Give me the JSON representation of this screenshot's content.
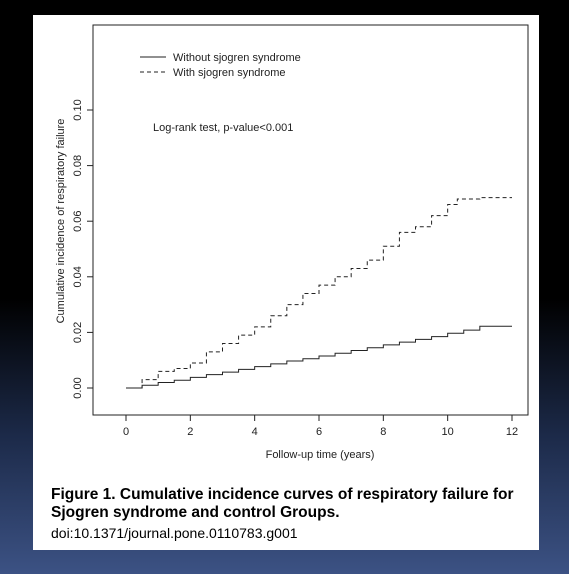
{
  "chart_data": {
    "type": "line",
    "xlabel": "Follow-up time (years)",
    "ylabel": "Cumulative incidence of respiratory failure",
    "xlim": [
      0,
      12
    ],
    "ylim": [
      0,
      0.1
    ],
    "xticks": [
      0,
      2,
      4,
      6,
      8,
      10,
      12
    ],
    "yticks": [
      0.0,
      0.02,
      0.04,
      0.06,
      0.08,
      0.1
    ],
    "ytick_labels": [
      "0.00",
      "0.02",
      "0.04",
      "0.06",
      "0.08",
      "0.10"
    ],
    "grid": false,
    "legend_position": "top-left",
    "annotation": "Log-rank test, p-value<0.001",
    "series": [
      {
        "name": "Without sjogren syndrome",
        "style": "solid",
        "x": [
          0,
          0.5,
          1,
          1.5,
          2,
          2.5,
          3,
          3.5,
          4,
          4.5,
          5,
          5.5,
          6,
          6.5,
          7,
          7.5,
          8,
          8.5,
          9,
          9.5,
          10,
          10.5,
          11,
          12
        ],
        "y": [
          0,
          0.001,
          0.002,
          0.0028,
          0.0038,
          0.0048,
          0.0057,
          0.0067,
          0.0077,
          0.0087,
          0.0097,
          0.0105,
          0.0115,
          0.0125,
          0.0135,
          0.0145,
          0.0155,
          0.0165,
          0.0175,
          0.0185,
          0.0197,
          0.0208,
          0.0222,
          0.0222
        ]
      },
      {
        "name": "With sjogren syndrome",
        "style": "dashed",
        "x": [
          0,
          0.5,
          1,
          1.5,
          2,
          2.5,
          3,
          3.5,
          4,
          4.5,
          5,
          5.5,
          6,
          6.5,
          7,
          7.5,
          8,
          8.5,
          9,
          9.5,
          10,
          10.3,
          11,
          12
        ],
        "y": [
          0,
          0.003,
          0.006,
          0.007,
          0.009,
          0.013,
          0.016,
          0.019,
          0.022,
          0.026,
          0.03,
          0.034,
          0.037,
          0.04,
          0.043,
          0.046,
          0.051,
          0.056,
          0.058,
          0.062,
          0.066,
          0.068,
          0.0685,
          0.0685
        ]
      }
    ]
  },
  "caption": {
    "title": "Figure 1. Cumulative incidence curves of respiratory failure for Sjogren syndrome and control Groups.",
    "doi": "doi:10.1371/journal.pone.0110783.g001"
  }
}
